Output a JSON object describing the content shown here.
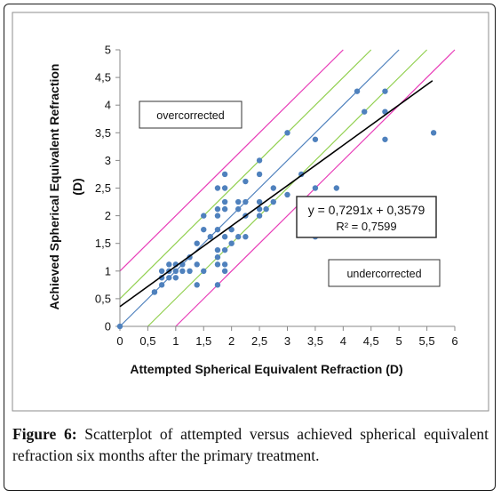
{
  "chart_data": {
    "type": "scatter",
    "xlabel": "Attempted Spherical Equivalent Refraction (D)",
    "ylabel_line1": "Achieved Spherical Equivalent Refraction",
    "ylabel_line2": "(D)",
    "xlim": [
      0,
      6
    ],
    "ylim": [
      0,
      5
    ],
    "x_ticks": [
      0,
      0.5,
      1,
      1.5,
      2,
      2.5,
      3,
      3.5,
      4,
      4.5,
      5,
      5.5,
      6
    ],
    "y_ticks": [
      0,
      0.5,
      1,
      1.5,
      2,
      2.5,
      3,
      3.5,
      4,
      4.5,
      5
    ],
    "x_tick_labels": [
      "0",
      "0,5",
      "1",
      "1,5",
      "2",
      "2,5",
      "3",
      "3,5",
      "4",
      "4,5",
      "5",
      "5,5",
      "6"
    ],
    "y_tick_labels": [
      "0",
      "0,5",
      "1",
      "1,5",
      "2",
      "2,5",
      "3",
      "3,5",
      "4",
      "4,5",
      "5"
    ],
    "point_color": "#4f81bd",
    "points": [
      [
        0,
        0
      ],
      [
        0.62,
        0.62
      ],
      [
        0.62,
        0.62
      ],
      [
        0.75,
        0.75
      ],
      [
        0.75,
        0.88
      ],
      [
        0.75,
        1.0
      ],
      [
        0.88,
        0.88
      ],
      [
        0.88,
        1.0
      ],
      [
        0.88,
        1.12
      ],
      [
        1.0,
        0.88
      ],
      [
        1.0,
        1.0
      ],
      [
        1.0,
        1.12
      ],
      [
        1.12,
        1.0
      ],
      [
        1.12,
        1.12
      ],
      [
        1.25,
        1.0
      ],
      [
        1.25,
        1.25
      ],
      [
        1.38,
        0.75
      ],
      [
        1.38,
        1.12
      ],
      [
        1.38,
        1.5
      ],
      [
        1.5,
        1.0
      ],
      [
        1.5,
        1.75
      ],
      [
        1.5,
        2.0
      ],
      [
        1.62,
        1.62
      ],
      [
        1.75,
        0.75
      ],
      [
        1.75,
        1.12
      ],
      [
        1.75,
        1.25
      ],
      [
        1.75,
        1.38
      ],
      [
        1.75,
        1.75
      ],
      [
        1.75,
        2.0
      ],
      [
        1.75,
        2.12
      ],
      [
        1.75,
        2.5
      ],
      [
        1.88,
        1.0
      ],
      [
        1.88,
        1.12
      ],
      [
        1.88,
        1.38
      ],
      [
        1.88,
        1.62
      ],
      [
        1.88,
        2.12
      ],
      [
        1.88,
        2.25
      ],
      [
        1.88,
        2.5
      ],
      [
        1.88,
        2.75
      ],
      [
        2.0,
        1.5
      ],
      [
        2.0,
        1.75
      ],
      [
        2.12,
        1.62
      ],
      [
        2.12,
        2.12
      ],
      [
        2.12,
        2.25
      ],
      [
        2.25,
        1.62
      ],
      [
        2.25,
        2.0
      ],
      [
        2.25,
        2.25
      ],
      [
        2.25,
        2.62
      ],
      [
        2.5,
        2.0
      ],
      [
        2.5,
        2.12
      ],
      [
        2.5,
        2.25
      ],
      [
        2.5,
        2.75
      ],
      [
        2.5,
        3.0
      ],
      [
        2.62,
        2.12
      ],
      [
        2.75,
        2.25
      ],
      [
        2.75,
        2.5
      ],
      [
        3.0,
        2.38
      ],
      [
        3.0,
        3.5
      ],
      [
        3.25,
        2.75
      ],
      [
        3.5,
        1.62
      ],
      [
        3.5,
        2.5
      ],
      [
        3.5,
        3.38
      ],
      [
        3.88,
        2.5
      ],
      [
        4.25,
        4.25
      ],
      [
        4.38,
        3.88
      ],
      [
        4.75,
        3.38
      ],
      [
        4.75,
        3.88
      ],
      [
        4.75,
        4.25
      ],
      [
        5.62,
        3.5
      ]
    ],
    "regression": {
      "slope": 0.7291,
      "intercept": 0.3579,
      "equation": "y = 0,7291x + 0,3579",
      "r2": "R² = 0,7599",
      "color": "#000000"
    },
    "reference_lines": [
      {
        "offset": 0,
        "color": "#4f81bd"
      },
      {
        "offset": 0.5,
        "color": "#92d050"
      },
      {
        "offset": -0.5,
        "color": "#92d050"
      },
      {
        "offset": 1.0,
        "color": "#e83cb8"
      },
      {
        "offset": -1.0,
        "color": "#e83cb8"
      }
    ],
    "annotations": {
      "overcorrected": "overcorrected",
      "undercorrected": "undercorrected"
    },
    "grid": false
  },
  "caption": {
    "label": "Figure 6:",
    "text": " Scatterplot of attempted versus achieved spherical equivalent refraction six months after the primary treatment."
  }
}
